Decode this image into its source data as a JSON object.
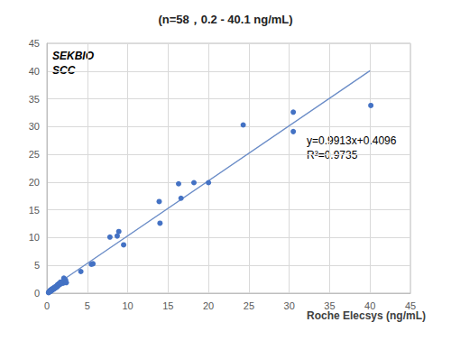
{
  "chart_data": {
    "type": "scatter",
    "title": "(n=58，0.2 - 40.1 ng/mL)",
    "x_label": "Roche Elecsys (ng/mL)",
    "annotations": [
      "SEKBIO",
      "SCC",
      "y=0.9913x+0.4096",
      "R²=0.9735"
    ],
    "xlim": [
      0,
      45
    ],
    "xticks": [
      0,
      5,
      10,
      15,
      20,
      25,
      30,
      35,
      40,
      45
    ],
    "ylim": [
      0,
      45
    ],
    "yticks": [
      0,
      5,
      10,
      15,
      20,
      25,
      30,
      35,
      40,
      45
    ],
    "grid": true,
    "series": [
      {
        "type": "scatter",
        "color": "#4472c4",
        "marker": "circle",
        "x": [
          0.2,
          0.3,
          0.3,
          0.4,
          0.4,
          0.5,
          0.5,
          0.6,
          0.6,
          0.7,
          0.7,
          0.8,
          0.8,
          0.9,
          0.9,
          1.0,
          1.0,
          1.1,
          1.1,
          1.2,
          1.2,
          1.3,
          1.3,
          1.4,
          1.4,
          1.5,
          1.5,
          1.6,
          1.6,
          1.7,
          1.8,
          1.9,
          2.0,
          2.0,
          2.1,
          2.2,
          2.2,
          2.3,
          2.4,
          1.7,
          0.25,
          4.2,
          5.5,
          5.7,
          7.8,
          8.7,
          8.9,
          9.5,
          13.9,
          14.0,
          16.3,
          16.6,
          18.2,
          20.0,
          24.3,
          30.5,
          30.5,
          40.1
        ],
        "values": [
          0.1,
          0.2,
          0.3,
          0.3,
          0.5,
          0.4,
          0.6,
          0.5,
          0.7,
          0.6,
          0.8,
          0.7,
          0.9,
          0.8,
          1.0,
          0.9,
          1.1,
          1.0,
          1.2,
          1.1,
          1.3,
          1.2,
          1.5,
          1.4,
          1.6,
          1.5,
          1.7,
          1.6,
          1.8,
          1.7,
          1.9,
          2.0,
          1.8,
          2.1,
          2.7,
          2.3,
          2.0,
          2.4,
          1.9,
          2.0,
          0.2,
          3.9,
          5.2,
          5.3,
          10.1,
          10.3,
          11.1,
          8.7,
          16.5,
          12.6,
          19.7,
          17.1,
          19.9,
          19.9,
          30.3,
          32.6,
          29.1,
          33.8
        ]
      },
      {
        "type": "line",
        "color": "#6a8cc7",
        "line_style": "solid",
        "x": [
          0,
          40
        ],
        "values": [
          0.4096,
          40.0616
        ]
      }
    ]
  }
}
